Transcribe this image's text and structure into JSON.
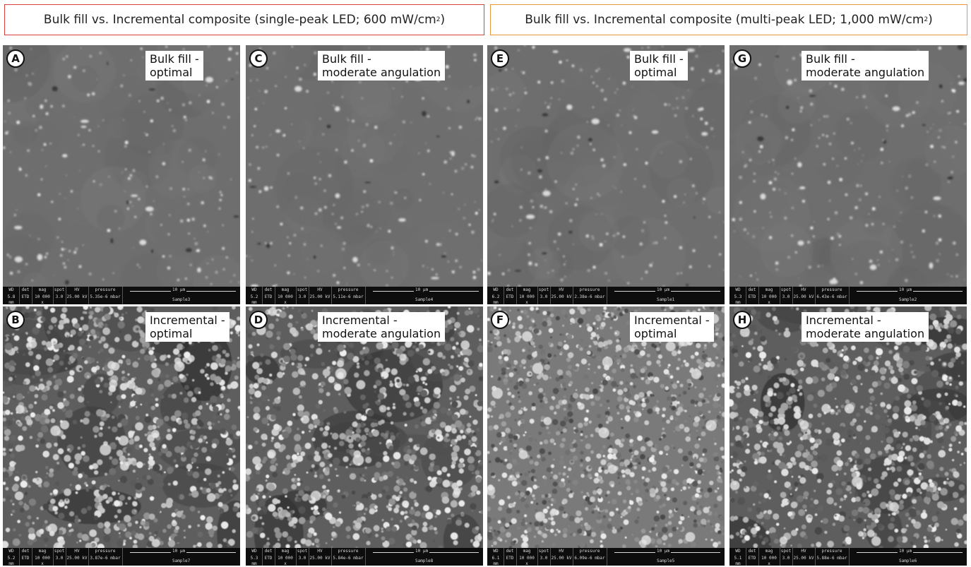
{
  "headers": [
    {
      "text": "Bulk fill vs. Incremental composite (single-peak LED; 600 mW/cm",
      "sup": "2",
      "tail": ")",
      "border_color": "#d8403c"
    },
    {
      "text": "Bulk fill vs. Incremental composite (multi-peak LED; 1,000 mW/cm",
      "sup": "2",
      "tail": ")",
      "border_color": "#e8953c"
    }
  ],
  "databar_labels": {
    "wd": "WD",
    "det": "det",
    "mag": "mag",
    "spot": "spot",
    "hv": "HV",
    "pressure": "pressure",
    "scale": "10 µm"
  },
  "panels": [
    {
      "letter": "A",
      "caption": "Bulk fill -\noptimal",
      "wd": "5.8 mm",
      "det": "ETD",
      "mag": "10 000 x",
      "spot": "3.0",
      "hv": "25.00 kV",
      "pressure": "5.35e-6 mbar",
      "sample": "Sample3",
      "texture": "smooth"
    },
    {
      "letter": "B",
      "caption": "Incremental -\noptimal",
      "wd": "5.2 mm",
      "det": "ETD",
      "mag": "10 000 x",
      "spot": "3.0",
      "hv": "25.00 kV",
      "pressure": "3.87e-6 mbar",
      "sample": "Sample7",
      "texture": "rough"
    },
    {
      "letter": "C",
      "caption": "Bulk fill -\nmoderate angulation",
      "wd": "5.2 mm",
      "det": "ETD",
      "mag": "10 000 x",
      "spot": "3.0",
      "hv": "25.00 kV",
      "pressure": "5.11e-6 mbar",
      "sample": "Sample4",
      "texture": "smooth"
    },
    {
      "letter": "D",
      "caption": "Incremental -\nmoderate angulation",
      "wd": "5.3 mm",
      "det": "ETD",
      "mag": "10 000 x",
      "spot": "3.0",
      "hv": "25.00 kV",
      "pressure": "5.84e-6 mbar",
      "sample": "Sample8",
      "texture": "rough"
    },
    {
      "letter": "E",
      "caption": "Bulk fill -\noptimal",
      "wd": "6.2 mm",
      "det": "ETD",
      "mag": "10 000 x",
      "spot": "3.0",
      "hv": "25.00 kV",
      "pressure": "2.38e-6 mbar",
      "sample": "Sample1",
      "texture": "smooth"
    },
    {
      "letter": "F",
      "caption": "Incremental -\noptimal",
      "wd": "6.1 mm",
      "det": "ETD",
      "mag": "10 000 x",
      "spot": "3.0",
      "hv": "25.00 kV",
      "pressure": "6.09e-6 mbar",
      "sample": "Sample5",
      "texture": "grainy"
    },
    {
      "letter": "G",
      "caption": "Bulk fill -\nmoderate angulation",
      "wd": "5.3 mm",
      "det": "ETD",
      "mag": "10 000 x",
      "spot": "3.0",
      "hv": "25.00 kV",
      "pressure": "6.43e-6 mbar",
      "sample": "Sample2",
      "texture": "smooth"
    },
    {
      "letter": "H",
      "caption": "Incremental -\nmoderate angulation",
      "wd": "5.1 mm",
      "det": "ETD",
      "mag": "10 000 x",
      "spot": "3.0",
      "hv": "25.00 kV",
      "pressure": "5.88e-6 mbar",
      "sample": "Sample6",
      "texture": "rough"
    }
  ]
}
